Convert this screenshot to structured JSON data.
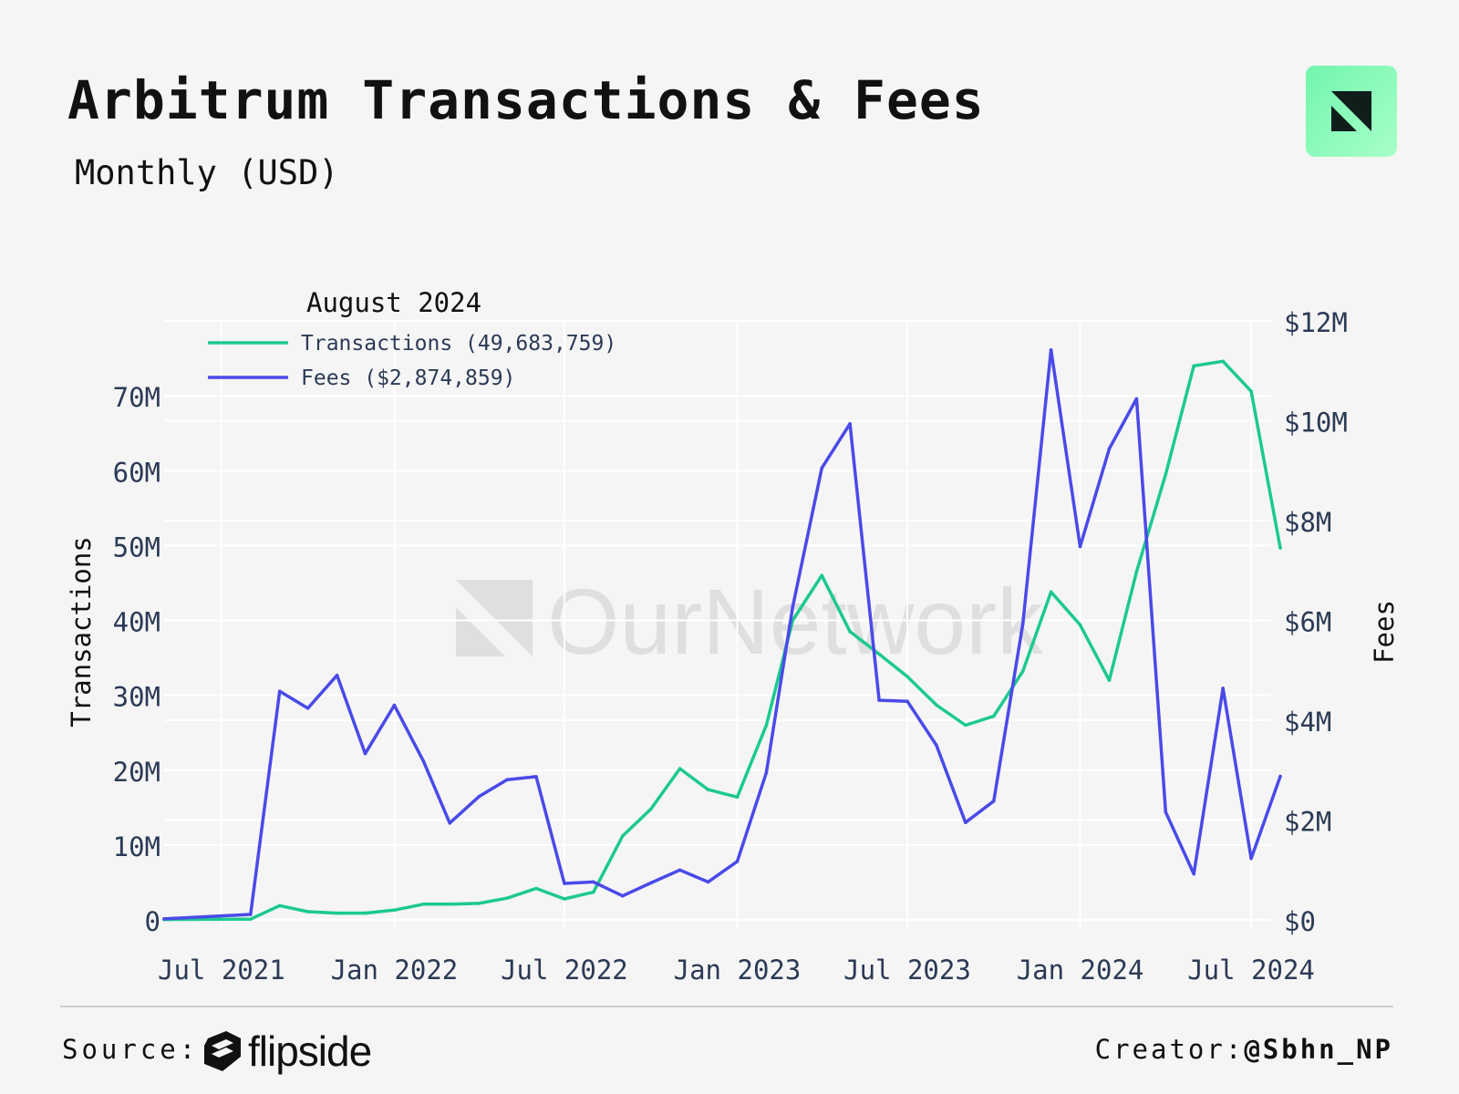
{
  "header": {
    "title": "Arbitrum Transactions & Fees",
    "subtitle": "Monthly (USD)"
  },
  "watermark": {
    "text": "OurNetwork"
  },
  "footer": {
    "source_label": "Source:",
    "source_brand": "flipside",
    "creator_label": "Creator:",
    "creator_handle": "@Sbhn_NP"
  },
  "colors": {
    "transactions": "#1cc98f",
    "fees": "#4a4ae8",
    "logo": "#8cf7bf"
  },
  "chart_data": {
    "type": "line",
    "title": "Arbitrum Transactions & Fees",
    "legend_title": "August 2024",
    "legend_position": "top-left",
    "xlabel": "",
    "ylabel_left": "Transactions",
    "ylabel_right": "Fees",
    "ylim_left": [
      0,
      80000000
    ],
    "ylim_right": [
      0,
      12000000
    ],
    "x_tick_labels": [
      "Jul 2021",
      "Jan 2022",
      "Jul 2022",
      "Jan 2023",
      "Jul 2023",
      "Jan 2024",
      "Jul 2024"
    ],
    "y_left_tick_labels": [
      "0",
      "10M",
      "20M",
      "30M",
      "40M",
      "50M",
      "60M",
      "70M"
    ],
    "y_right_tick_labels": [
      "$0",
      "$2M",
      "$4M",
      "$6M",
      "$8M",
      "$10M",
      "$12M"
    ],
    "x": [
      "2021-05",
      "2021-08",
      "2021-09",
      "2021-10",
      "2021-11",
      "2021-12",
      "2022-01",
      "2022-02",
      "2022-03",
      "2022-04",
      "2022-05",
      "2022-06",
      "2022-07",
      "2022-08",
      "2022-09",
      "2022-10",
      "2022-11",
      "2022-12",
      "2023-01",
      "2023-02",
      "2023-03",
      "2023-04",
      "2023-05",
      "2023-06",
      "2023-07",
      "2023-08",
      "2023-09",
      "2023-10",
      "2023-11",
      "2023-12",
      "2024-01",
      "2024-02",
      "2024-03",
      "2024-04",
      "2024-05",
      "2024-06",
      "2024-07",
      "2024-08"
    ],
    "series": [
      {
        "name": "Transactions",
        "legend_label": "Transactions (49,683,759)",
        "axis": "left",
        "values": [
          50000,
          100000,
          1900000,
          1100000,
          900000,
          900000,
          1300000,
          2100000,
          2100000,
          2200000,
          2900000,
          4200000,
          2800000,
          3700000,
          11200000,
          14800000,
          20200000,
          17400000,
          16400000,
          26000000,
          40000000,
          46000000,
          38500000,
          35500000,
          32500000,
          28700000,
          26000000,
          27200000,
          33200000,
          43800000,
          39400000,
          32000000,
          46500000,
          59500000,
          74000000,
          74600000,
          70600000,
          49683759
        ]
      },
      {
        "name": "Fees",
        "legend_label": "Fees ($2,874,859)",
        "axis": "right",
        "values": [
          20000,
          110000,
          4580000,
          4240000,
          4900000,
          3330000,
          4300000,
          3180000,
          1940000,
          2470000,
          2810000,
          2870000,
          730000,
          760000,
          480000,
          740000,
          1000000,
          760000,
          1170000,
          2950000,
          6270000,
          9050000,
          9940000,
          4400000,
          4380000,
          3500000,
          1950000,
          2380000,
          5930000,
          11420000,
          7480000,
          9440000,
          10440000,
          2160000,
          920000,
          4640000,
          1230000,
          2874859
        ]
      }
    ]
  }
}
